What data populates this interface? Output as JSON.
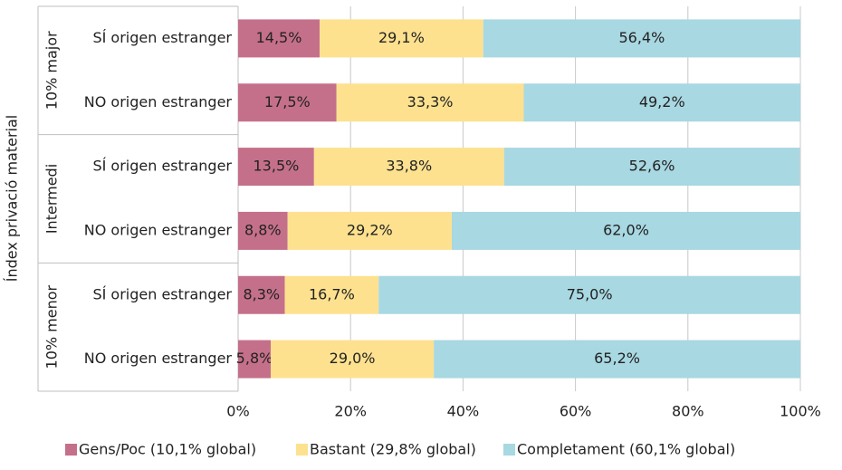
{
  "chart_data": {
    "type": "stacked-bar-horizontal",
    "y_axis_label": "Índex privació material",
    "groups": [
      "10% major",
      "Intermedi",
      "10% menor"
    ],
    "categories": [
      "SÍ origen estranger",
      "NO origen estranger",
      "SÍ origen estranger",
      "NO origen estranger",
      "SÍ origen estranger",
      "NO origen estranger"
    ],
    "series": [
      {
        "name": "Gens/Poc (10,1% global)",
        "color": "#c5708a",
        "values": [
          14.5,
          17.5,
          13.5,
          8.8,
          8.3,
          5.8
        ],
        "value_labels": [
          "14,5%",
          "17,5%",
          "13,5%",
          "8,8%",
          "8,3%",
          "5,8%"
        ]
      },
      {
        "name": "Bastant (29,8% global)",
        "color": "#fde18f",
        "values": [
          29.1,
          33.3,
          33.8,
          29.2,
          16.7,
          29.0
        ],
        "value_labels": [
          "29,1%",
          "33,3%",
          "33,8%",
          "29,2%",
          "16,7%",
          "29,0%"
        ]
      },
      {
        "name": "Completament (60,1% global)",
        "color": "#a8d8e2",
        "values": [
          56.4,
          49.2,
          52.6,
          62.0,
          75.0,
          65.2
        ],
        "value_labels": [
          "56,4%",
          "49,2%",
          "52,6%",
          "62,0%",
          "75,0%",
          "65,2%"
        ]
      }
    ],
    "xlim": [
      0,
      100
    ],
    "xticks": [
      {
        "value": 0,
        "label": "0%"
      },
      {
        "value": 20,
        "label": "20%"
      },
      {
        "value": 40,
        "label": "40%"
      },
      {
        "value": 60,
        "label": "60%"
      },
      {
        "value": 80,
        "label": "80%"
      },
      {
        "value": 100,
        "label": "100%"
      }
    ],
    "grid": true,
    "legend": "bottom"
  }
}
